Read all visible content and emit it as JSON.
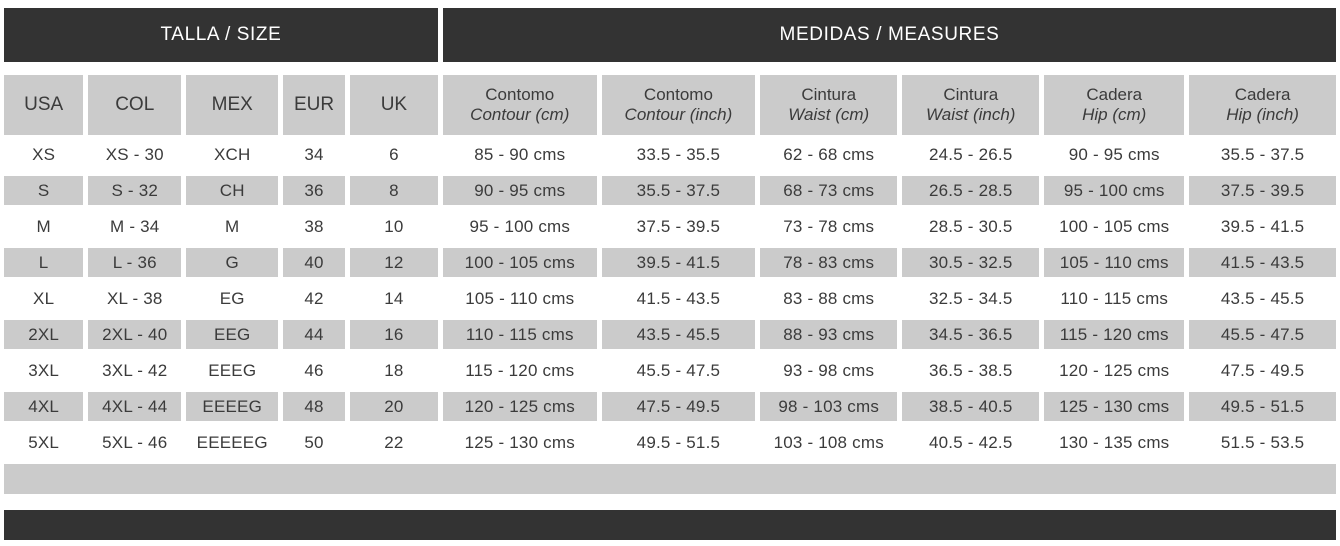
{
  "header": {
    "left_band": "TALLA / SIZE",
    "right_band": "MEDIDAS / MEASURES"
  },
  "table": {
    "columns": [
      {
        "id": "usa",
        "label": "USA",
        "sublabel": ""
      },
      {
        "id": "col",
        "label": "COL",
        "sublabel": ""
      },
      {
        "id": "mex",
        "label": "MEX",
        "sublabel": ""
      },
      {
        "id": "eur",
        "label": "EUR",
        "sublabel": ""
      },
      {
        "id": "uk",
        "label": "UK",
        "sublabel": ""
      },
      {
        "id": "contour-cm",
        "label": "Contomo",
        "sublabel": "Contour (cm)"
      },
      {
        "id": "contour-inch",
        "label": "Contomo",
        "sublabel": "Contour (inch)"
      },
      {
        "id": "waist-cm",
        "label": "Cintura",
        "sublabel": "Waist (cm)"
      },
      {
        "id": "waist-inch",
        "label": "Cintura",
        "sublabel": "Waist (inch)"
      },
      {
        "id": "hip-cm",
        "label": "Cadera",
        "sublabel": "Hip (cm)"
      },
      {
        "id": "hip-inch",
        "label": "Cadera",
        "sublabel": "Hip (inch)"
      }
    ],
    "rows": [
      [
        "XS",
        "XS - 30",
        "XCH",
        "34",
        "6",
        "85 - 90 cms",
        "33.5 - 35.5",
        "62 - 68 cms",
        "24.5 - 26.5",
        "90 - 95 cms",
        "35.5 - 37.5"
      ],
      [
        "S",
        "S - 32",
        "CH",
        "36",
        "8",
        "90 - 95 cms",
        "35.5 - 37.5",
        "68 - 73 cms",
        "26.5 - 28.5",
        "95 - 100 cms",
        "37.5 - 39.5"
      ],
      [
        "M",
        "M - 34",
        "M",
        "38",
        "10",
        "95 - 100 cms",
        "37.5 - 39.5",
        "73 - 78 cms",
        "28.5 - 30.5",
        "100 - 105 cms",
        "39.5 - 41.5"
      ],
      [
        "L",
        "L - 36",
        "G",
        "40",
        "12",
        "100 - 105 cms",
        "39.5 - 41.5",
        "78 - 83 cms",
        "30.5 - 32.5",
        "105 - 110 cms",
        "41.5 - 43.5"
      ],
      [
        "XL",
        "XL - 38",
        "EG",
        "42",
        "14",
        "105 - 110 cms",
        "41.5 - 43.5",
        "83 - 88 cms",
        "32.5 - 34.5",
        "110 - 115 cms",
        "43.5 - 45.5"
      ],
      [
        "2XL",
        "2XL - 40",
        "EEG",
        "44",
        "16",
        "110 - 115 cms",
        "43.5 - 45.5",
        "88 - 93 cms",
        "34.5 - 36.5",
        "115 - 120 cms",
        "45.5 - 47.5"
      ],
      [
        "3XL",
        "3XL - 42",
        "EEEG",
        "46",
        "18",
        "115 - 120 cms",
        "45.5 - 47.5",
        "93 - 98 cms",
        "36.5 - 38.5",
        "120 - 125 cms",
        "47.5 - 49.5"
      ],
      [
        "4XL",
        "4XL - 44",
        "EEEEG",
        "48",
        "20",
        "120 - 125 cms",
        "47.5 - 49.5",
        "98 - 103 cms",
        "38.5 - 40.5",
        "125 - 130 cms",
        "49.5 - 51.5"
      ],
      [
        "5XL",
        "5XL - 46",
        "EEEEEG",
        "50",
        "22",
        "125 - 130 cms",
        "49.5 - 51.5",
        "103 - 108 cms",
        "40.5 - 42.5",
        "130 - 135 cms",
        "51.5 - 53.5"
      ]
    ],
    "shaded_row_indices": [
      1,
      3,
      5,
      7
    ]
  },
  "colors": {
    "accent_dark": "#333333",
    "row_shade": "#cbcbcb",
    "band_text": "#ffffff",
    "cell_text": "#3b3b3b",
    "page_bg": "#ffffff"
  }
}
